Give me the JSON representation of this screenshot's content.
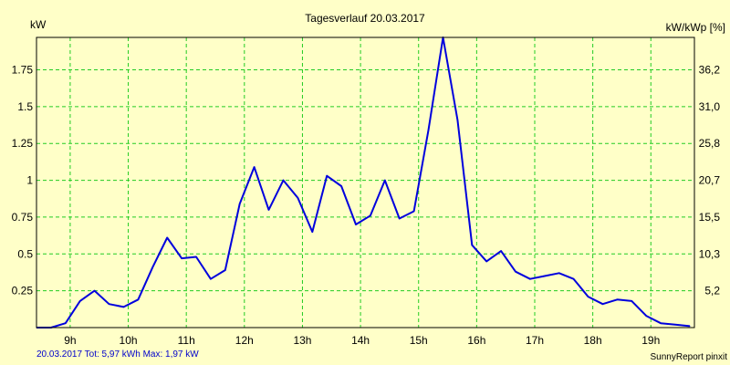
{
  "chart_data": {
    "type": "line",
    "title": "Tagesverlauf 20.03.2017",
    "ylabel_left": "kW",
    "ylabel_right": "kW/kWp [%]",
    "x_ticks": [
      "9h",
      "10h",
      "11h",
      "12h",
      "13h",
      "14h",
      "15h",
      "16h",
      "17h",
      "18h",
      "19h"
    ],
    "x_tick_hours": [
      9,
      10,
      11,
      12,
      13,
      14,
      15,
      16,
      17,
      18,
      19
    ],
    "y_ticks_left": [
      "0.25",
      "0.5",
      "0.75",
      "1",
      "1.25",
      "1.5",
      "1.75"
    ],
    "y_tick_values": [
      0.25,
      0.5,
      0.75,
      1,
      1.25,
      1.5,
      1.75
    ],
    "y_ticks_right": [
      "5,2",
      "10,3",
      "15,5",
      "20,7",
      "25,8",
      "31,0",
      "36,2"
    ],
    "xlim": [
      8.42,
      19.75
    ],
    "ylim": [
      0,
      1.97
    ],
    "grid": true,
    "series": [
      {
        "color": "#0000dd",
        "x": [
          8.42,
          8.5,
          8.67,
          8.92,
          9.17,
          9.42,
          9.67,
          9.92,
          10.17,
          10.42,
          10.67,
          10.92,
          11.17,
          11.42,
          11.67,
          11.92,
          12.17,
          12.42,
          12.67,
          12.92,
          13.17,
          13.42,
          13.67,
          13.92,
          14.17,
          14.42,
          14.67,
          14.92,
          15.17,
          15.42,
          15.67,
          15.92,
          16.17,
          16.42,
          16.67,
          16.92,
          17.17,
          17.42,
          17.67,
          17.92,
          18.17,
          18.42,
          18.67,
          18.92,
          19.17,
          19.42,
          19.67
        ],
        "y": [
          0.0,
          0.0,
          0.0,
          0.03,
          0.18,
          0.25,
          0.16,
          0.14,
          0.19,
          0.41,
          0.61,
          0.47,
          0.48,
          0.33,
          0.39,
          0.84,
          1.09,
          0.8,
          1.0,
          0.88,
          0.65,
          1.03,
          0.96,
          0.7,
          0.76,
          1.0,
          0.74,
          0.79,
          1.34,
          1.97,
          1.41,
          0.56,
          0.45,
          0.52,
          0.38,
          0.33,
          0.35,
          0.37,
          0.33,
          0.21,
          0.16,
          0.19,
          0.18,
          0.08,
          0.03,
          0.02,
          0.01
        ]
      }
    ]
  },
  "footer": {
    "summary": "20.03.2017 Tot: 5,97 kWh Max: 1,97 kW",
    "brand": "SunnyReport pinxit"
  },
  "colors": {
    "background": "#ffffc8",
    "grid": "#22cc22",
    "line": "#0000dd"
  }
}
